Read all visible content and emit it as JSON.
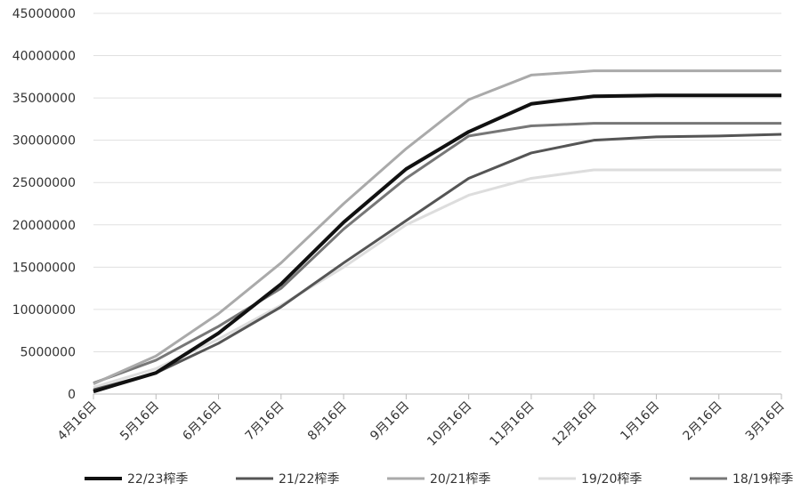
{
  "chart_data": {
    "type": "line",
    "categories": [
      "4月16日",
      "5月16日",
      "6月16日",
      "7月16日",
      "8月16日",
      "9月16日",
      "10月16日",
      "11月16日",
      "12月16日",
      "1月16日",
      "2月16日",
      "3月16日"
    ],
    "ylim": [
      0,
      45000000
    ],
    "yticks": [
      0,
      5000000,
      10000000,
      15000000,
      20000000,
      25000000,
      30000000,
      35000000,
      40000000,
      45000000
    ],
    "grid": true,
    "legend": "bottom",
    "series": [
      {
        "name": "22/23榨季",
        "color": "#111111",
        "values": [
          300000,
          2500000,
          7200000,
          13000000,
          20300000,
          26600000,
          31000000,
          34300000,
          35200000,
          35300000,
          35300000,
          35300000
        ]
      },
      {
        "name": "21/22榨季",
        "color": "#555555",
        "values": [
          500000,
          2500000,
          6000000,
          10300000,
          15500000,
          20500000,
          25500000,
          28500000,
          30000000,
          30400000,
          30500000,
          30700000
        ]
      },
      {
        "name": "20/21榨季",
        "color": "#aaaaaa",
        "values": [
          1200000,
          4500000,
          9500000,
          15500000,
          22500000,
          29000000,
          34800000,
          37700000,
          38200000,
          38200000,
          38200000,
          38200000
        ]
      },
      {
        "name": "19/20榨季",
        "color": "#dddddd",
        "values": [
          800000,
          3000000,
          6500000,
          10500000,
          15000000,
          20000000,
          23500000,
          25500000,
          26500000,
          26500000,
          26500000,
          26500000
        ]
      },
      {
        "name": "18/19榨季",
        "color": "#777777",
        "values": [
          1300000,
          4000000,
          8000000,
          12500000,
          19500000,
          25500000,
          30500000,
          31700000,
          32000000,
          32000000,
          32000000,
          32000000
        ]
      }
    ]
  }
}
